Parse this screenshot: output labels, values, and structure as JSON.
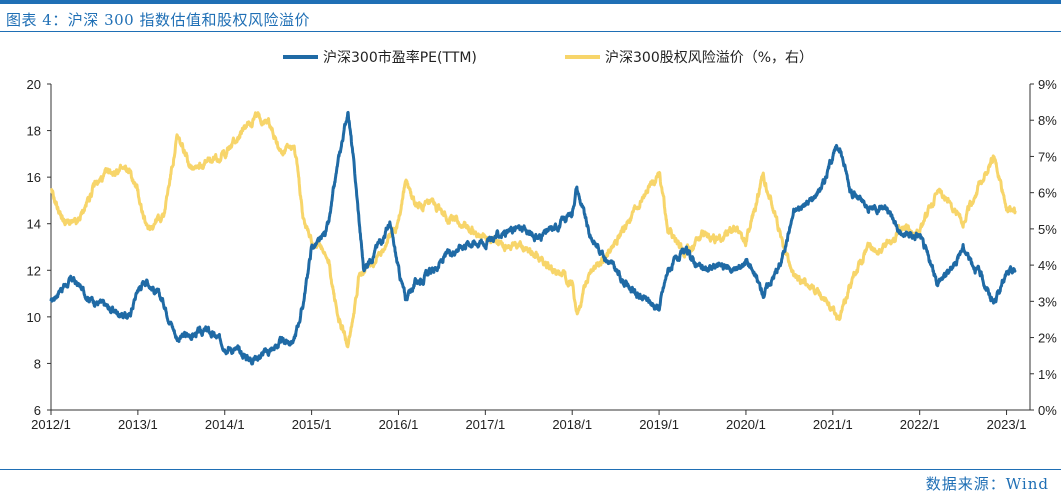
{
  "header": {
    "title": "图表 4：沪深 300 指数估值和股权风险溢价"
  },
  "footer": {
    "source": "数据来源：Wind"
  },
  "colors": {
    "brand": "#1f6fb5",
    "series_pe": "#1f6aa5",
    "series_erp": "#f7d56a"
  },
  "chart_data": {
    "type": "line",
    "x_categories": [
      "2012/1",
      "2013/1",
      "2014/1",
      "2015/1",
      "2016/1",
      "2017/1",
      "2018/1",
      "2019/1",
      "2020/1",
      "2021/1",
      "2022/1",
      "2023/1"
    ],
    "left_axis": {
      "min": 6,
      "max": 20,
      "ticks": [
        "6",
        "8",
        "10",
        "12",
        "14",
        "16",
        "18",
        "20"
      ]
    },
    "right_axis": {
      "min": 0,
      "max": 9,
      "ticks": [
        "0%",
        "1%",
        "2%",
        "3%",
        "4%",
        "5%",
        "6%",
        "7%",
        "8%",
        "9%"
      ]
    },
    "series": [
      {
        "name": "沪深300市盈率PE(TTM)",
        "axis": "left",
        "points": [
          [
            2012.0,
            10.6
          ],
          [
            2012.1,
            11.2
          ],
          [
            2012.25,
            11.6
          ],
          [
            2012.45,
            10.8
          ],
          [
            2012.7,
            10.3
          ],
          [
            2012.9,
            10.0
          ],
          [
            2013.0,
            11.2
          ],
          [
            2013.1,
            11.6
          ],
          [
            2013.3,
            10.6
          ],
          [
            2013.45,
            9.1
          ],
          [
            2013.6,
            9.2
          ],
          [
            2013.8,
            9.4
          ],
          [
            2014.0,
            8.8
          ],
          [
            2014.15,
            8.5
          ],
          [
            2014.3,
            8.2
          ],
          [
            2014.5,
            8.5
          ],
          [
            2014.65,
            8.9
          ],
          [
            2014.8,
            9.0
          ],
          [
            2014.9,
            10.5
          ],
          [
            2015.0,
            13.0
          ],
          [
            2015.1,
            13.2
          ],
          [
            2015.2,
            14.0
          ],
          [
            2015.3,
            16.5
          ],
          [
            2015.42,
            18.9
          ],
          [
            2015.5,
            16.0
          ],
          [
            2015.6,
            12.0
          ],
          [
            2015.75,
            13.0
          ],
          [
            2015.9,
            14.0
          ],
          [
            2016.0,
            12.0
          ],
          [
            2016.08,
            10.8
          ],
          [
            2016.2,
            11.5
          ],
          [
            2016.4,
            12.0
          ],
          [
            2016.6,
            12.8
          ],
          [
            2016.8,
            13.2
          ],
          [
            2017.0,
            13.2
          ],
          [
            2017.2,
            13.6
          ],
          [
            2017.4,
            13.8
          ],
          [
            2017.6,
            13.4
          ],
          [
            2017.8,
            13.8
          ],
          [
            2018.0,
            14.5
          ],
          [
            2018.05,
            15.6
          ],
          [
            2018.2,
            13.5
          ],
          [
            2018.4,
            12.5
          ],
          [
            2018.6,
            11.5
          ],
          [
            2018.8,
            10.8
          ],
          [
            2019.0,
            10.4
          ],
          [
            2019.1,
            12.0
          ],
          [
            2019.3,
            12.8
          ],
          [
            2019.5,
            12.0
          ],
          [
            2019.7,
            12.2
          ],
          [
            2019.9,
            12.0
          ],
          [
            2020.0,
            12.5
          ],
          [
            2020.2,
            11.0
          ],
          [
            2020.4,
            12.3
          ],
          [
            2020.55,
            14.5
          ],
          [
            2020.75,
            15.0
          ],
          [
            2020.9,
            15.8
          ],
          [
            2021.0,
            17.0
          ],
          [
            2021.08,
            17.3
          ],
          [
            2021.2,
            15.5
          ],
          [
            2021.4,
            14.6
          ],
          [
            2021.6,
            14.8
          ],
          [
            2021.8,
            13.5
          ],
          [
            2022.0,
            13.5
          ],
          [
            2022.1,
            12.5
          ],
          [
            2022.2,
            11.5
          ],
          [
            2022.35,
            12.0
          ],
          [
            2022.5,
            13.0
          ],
          [
            2022.7,
            11.8
          ],
          [
            2022.85,
            10.6
          ],
          [
            2023.0,
            11.8
          ],
          [
            2023.1,
            12.0
          ]
        ]
      },
      {
        "name": "沪深300股权风险溢价（%，右）",
        "axis": "right",
        "points": [
          [
            2012.0,
            6.0
          ],
          [
            2012.15,
            5.2
          ],
          [
            2012.3,
            5.1
          ],
          [
            2012.5,
            6.2
          ],
          [
            2012.7,
            6.6
          ],
          [
            2012.9,
            6.6
          ],
          [
            2013.0,
            6.0
          ],
          [
            2013.1,
            5.0
          ],
          [
            2013.3,
            5.4
          ],
          [
            2013.45,
            7.5
          ],
          [
            2013.6,
            6.8
          ],
          [
            2013.8,
            6.8
          ],
          [
            2014.0,
            7.1
          ],
          [
            2014.15,
            7.5
          ],
          [
            2014.35,
            8.1
          ],
          [
            2014.5,
            8.0
          ],
          [
            2014.65,
            7.1
          ],
          [
            2014.8,
            7.4
          ],
          [
            2014.9,
            5.3
          ],
          [
            2015.0,
            4.7
          ],
          [
            2015.1,
            4.5
          ],
          [
            2015.2,
            4.0
          ],
          [
            2015.3,
            2.6
          ],
          [
            2015.42,
            1.8
          ],
          [
            2015.55,
            3.8
          ],
          [
            2015.7,
            4.0
          ],
          [
            2015.85,
            4.6
          ],
          [
            2016.0,
            5.2
          ],
          [
            2016.08,
            6.3
          ],
          [
            2016.2,
            5.6
          ],
          [
            2016.4,
            5.6
          ],
          [
            2016.6,
            5.3
          ],
          [
            2016.8,
            5.0
          ],
          [
            2017.0,
            4.8
          ],
          [
            2017.2,
            4.5
          ],
          [
            2017.4,
            4.6
          ],
          [
            2017.6,
            4.3
          ],
          [
            2017.8,
            3.8
          ],
          [
            2018.0,
            3.5
          ],
          [
            2018.05,
            2.6
          ],
          [
            2018.2,
            3.8
          ],
          [
            2018.4,
            4.3
          ],
          [
            2018.6,
            5.0
          ],
          [
            2018.8,
            5.8
          ],
          [
            2019.0,
            6.6
          ],
          [
            2019.1,
            5.0
          ],
          [
            2019.3,
            4.3
          ],
          [
            2019.5,
            4.8
          ],
          [
            2019.7,
            4.7
          ],
          [
            2019.9,
            5.0
          ],
          [
            2020.0,
            4.6
          ],
          [
            2020.2,
            6.5
          ],
          [
            2020.4,
            4.8
          ],
          [
            2020.55,
            3.7
          ],
          [
            2020.75,
            3.4
          ],
          [
            2020.9,
            3.1
          ],
          [
            2021.0,
            2.8
          ],
          [
            2021.08,
            2.5
          ],
          [
            2021.2,
            3.5
          ],
          [
            2021.4,
            4.5
          ],
          [
            2021.6,
            4.5
          ],
          [
            2021.8,
            5.0
          ],
          [
            2022.0,
            4.8
          ],
          [
            2022.1,
            5.5
          ],
          [
            2022.2,
            6.0
          ],
          [
            2022.35,
            5.7
          ],
          [
            2022.5,
            5.2
          ],
          [
            2022.7,
            6.3
          ],
          [
            2022.85,
            7.0
          ],
          [
            2023.0,
            5.6
          ],
          [
            2023.1,
            5.5
          ]
        ]
      }
    ]
  }
}
